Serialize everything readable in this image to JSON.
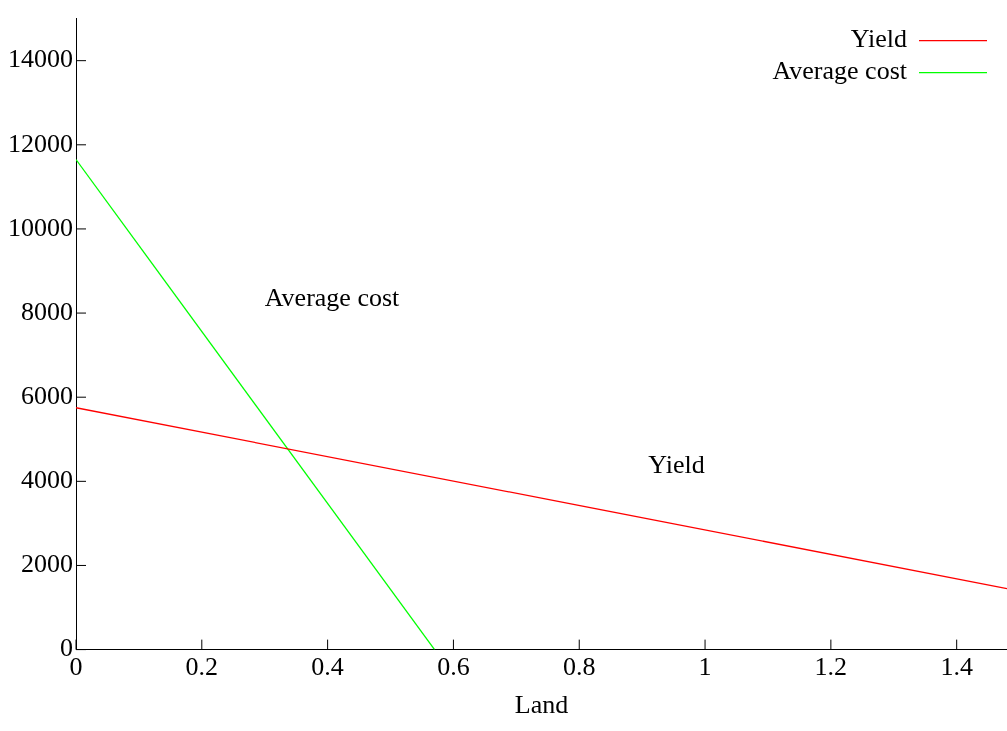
{
  "chart_data": {
    "type": "line",
    "xlabel": "Land",
    "xlim": [
      0,
      1.48
    ],
    "xticks": [
      0,
      0.2,
      0.4,
      0.6,
      0.8,
      1,
      1.2,
      1.4
    ],
    "ylim": [
      0,
      15000
    ],
    "yticks": [
      0,
      2000,
      4000,
      6000,
      8000,
      10000,
      12000,
      14000
    ],
    "series": [
      {
        "name": "Yield",
        "color": "#ff0000",
        "x": [
          0,
          1.48
        ],
        "values": [
          5750,
          1450
        ]
      },
      {
        "name": "Average cost",
        "color": "#00ff00",
        "x": [
          0,
          0.57
        ],
        "values": [
          11650,
          0
        ]
      }
    ],
    "annotations": [
      "Average cost",
      "Yield"
    ],
    "grid": false,
    "legend": "top right",
    "marker": "none",
    "line_style": "solid"
  }
}
